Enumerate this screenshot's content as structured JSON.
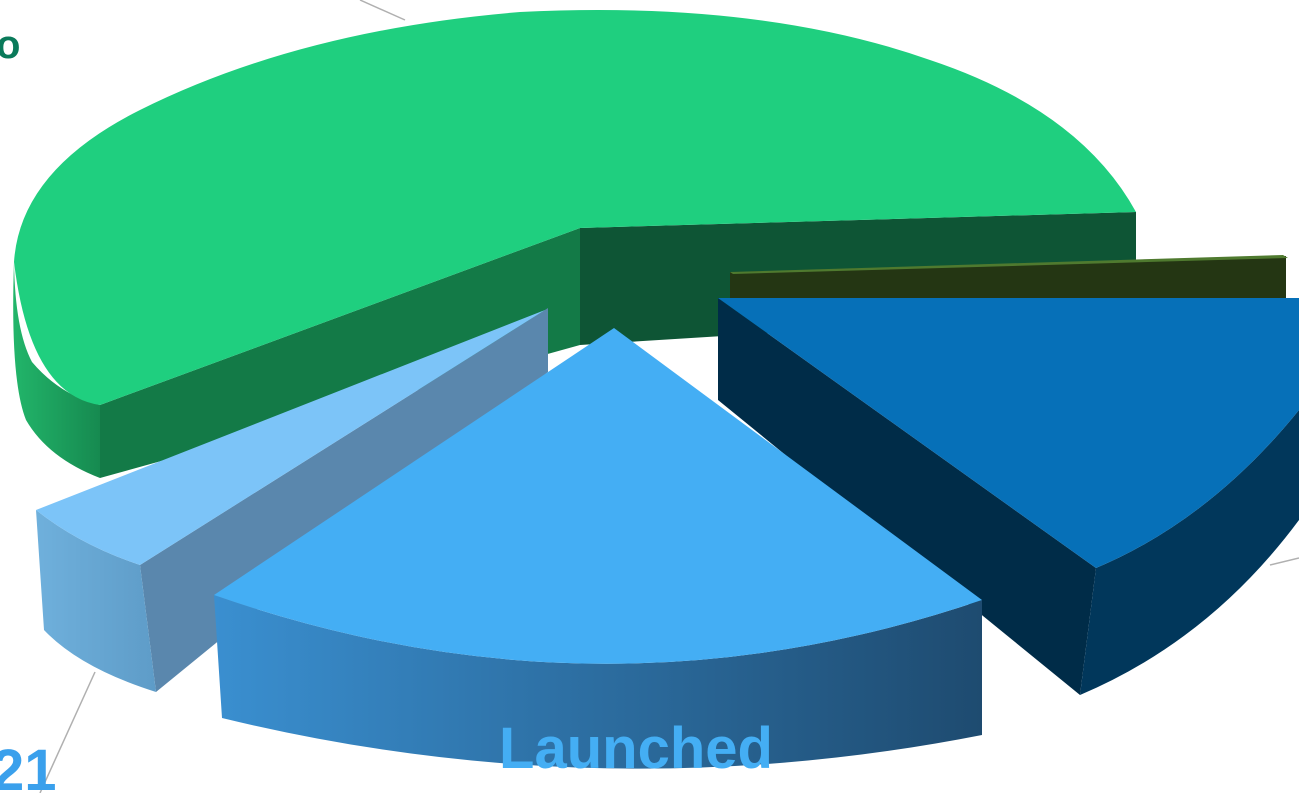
{
  "chart_data": {
    "type": "pie",
    "style": "3d-exploded",
    "slices": [
      {
        "label": "",
        "color": "#1FCF7F"
      },
      {
        "label": "",
        "color": "#4F7A2F"
      },
      {
        "label": "",
        "color": "#0670B8"
      },
      {
        "label": "Launched",
        "color": "#44AEF4"
      },
      {
        "label": "",
        "color": "#7CC4F8"
      }
    ],
    "visible_label_fragments": [
      {
        "text": "o",
        "color": "#0A7A5A"
      },
      {
        "text": "21",
        "color": "#3AA0EC"
      }
    ],
    "legend": "none"
  }
}
